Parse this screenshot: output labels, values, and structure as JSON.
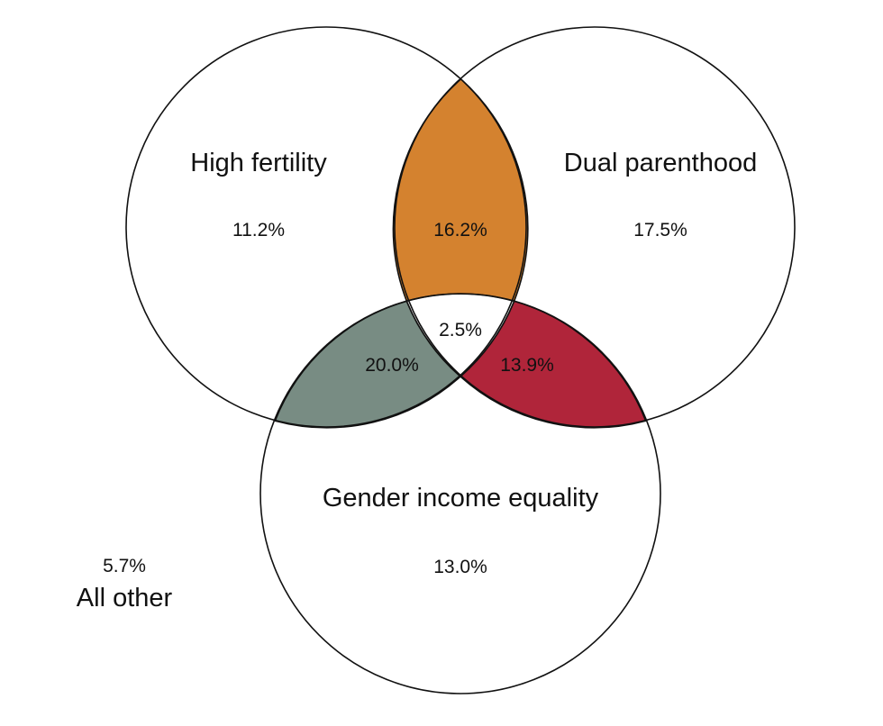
{
  "sets": [
    {
      "id": "A",
      "label": "High fertility"
    },
    {
      "id": "B",
      "label": "Dual parenthood"
    },
    {
      "id": "C",
      "label": "Gender income equality"
    }
  ],
  "regions": {
    "A_only": "11.2%",
    "B_only": "17.5%",
    "C_only": "13.0%",
    "AB_only": "16.2%",
    "AC_only": "20.0%",
    "BC_only": "13.9%",
    "ABC": "2.5%",
    "none": "5.7%"
  },
  "outside_label": "All other",
  "colors": {
    "AB": "#D4822F",
    "AC": "#788C83",
    "BC": "#B0253A",
    "ABC": "#FFFFFF",
    "outline": "#111111"
  }
}
